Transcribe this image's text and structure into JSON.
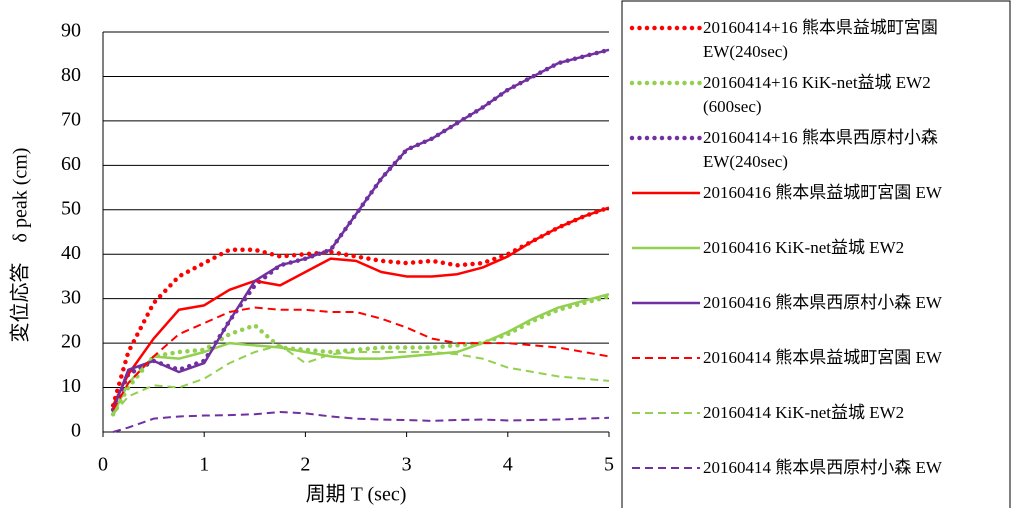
{
  "chart_data": {
    "type": "line",
    "y_label": "変位応答　δ peak (cm)",
    "x_label": "周期 T (sec)",
    "x": [
      0.1,
      0.25,
      0.5,
      0.75,
      1,
      1.25,
      1.5,
      1.75,
      2,
      2.25,
      2.5,
      2.75,
      3,
      3.25,
      3.5,
      3.75,
      4,
      4.25,
      4.5,
      4.75,
      5
    ],
    "xlim": [
      0,
      5
    ],
    "xticks": [
      0,
      1,
      2,
      3,
      4,
      5
    ],
    "ylim": [
      0,
      90
    ],
    "yticks": [
      0,
      10,
      20,
      30,
      40,
      50,
      60,
      70,
      80,
      90
    ],
    "grid": true,
    "legend": "right",
    "series": [
      {
        "name": "20160414+16 熊本県益城町宮園 EW(240sec)",
        "color": "#ff0000",
        "style": "dotted",
        "values": [
          6,
          18,
          29,
          35,
          38,
          41,
          41,
          39.5,
          40,
          40.5,
          39.5,
          38.5,
          38,
          38.5,
          37.5,
          38,
          40,
          43,
          46,
          48.5,
          50.5
        ]
      },
      {
        "name": "20160414+16 KiK-net益城 EW2 (600sec)",
        "color": "#92d050",
        "style": "dotted",
        "values": [
          4,
          10,
          17,
          18,
          18.5,
          22,
          24,
          19,
          18.5,
          18,
          18.5,
          19,
          19,
          19,
          19.5,
          20,
          22,
          25,
          27.5,
          29,
          30.5
        ]
      },
      {
        "name": "20160414+16 熊本県西原村小森 EW(240sec)",
        "color": "#7030a0",
        "style": "dotted",
        "values": [
          5,
          13,
          16,
          14,
          16,
          25,
          33,
          37.5,
          39,
          41,
          49,
          57,
          63.5,
          66,
          69.5,
          73,
          77,
          80,
          83,
          84.5,
          86
        ]
      },
      {
        "name": "20160416 熊本県益城町宮園 EW",
        "color": "#ff0000",
        "style": "solid",
        "values": [
          6,
          13,
          21,
          27.5,
          28.5,
          32,
          34,
          33,
          36,
          39,
          38.5,
          36,
          35,
          35,
          35.5,
          37,
          39.5,
          43,
          46,
          48.5,
          50.5
        ]
      },
      {
        "name": "20160416 KiK-net益城 EW2",
        "color": "#92d050",
        "style": "solid",
        "values": [
          4,
          11,
          17,
          16.5,
          18,
          20,
          19.5,
          19,
          18,
          17,
          16.5,
          16.5,
          17,
          17.5,
          18,
          20,
          22.5,
          25.5,
          28,
          29.5,
          31
        ]
      },
      {
        "name": "20160416 熊本県西原村小森 EW",
        "color": "#7030a0",
        "style": "solid",
        "values": [
          5,
          14,
          16,
          13.5,
          15.5,
          25,
          34,
          37.5,
          39,
          41,
          49,
          57,
          63.5,
          66,
          69.5,
          73,
          77,
          80,
          83,
          84.5,
          86
        ]
      },
      {
        "name": "20160414 熊本県益城町宮園 EW",
        "color": "#ff0000",
        "style": "dashed",
        "values": [
          5,
          11,
          17,
          22,
          24.5,
          27,
          28,
          27.5,
          27.5,
          27,
          27,
          25.5,
          23.5,
          21,
          20,
          20,
          20,
          19.5,
          19,
          18,
          17
        ]
      },
      {
        "name": "20160414 KiK-net益城 EW2",
        "color": "#92d050",
        "style": "dashed",
        "values": [
          4,
          8,
          10.5,
          10,
          12,
          15.5,
          18,
          19.5,
          15.5,
          17.5,
          18,
          18,
          18,
          18,
          17.5,
          16.5,
          14.5,
          13.5,
          12.5,
          12,
          11.5
        ]
      },
      {
        "name": "20160414 熊本県西原村小森 EW",
        "color": "#7030a0",
        "style": "dashed",
        "values": [
          0,
          1,
          3,
          3.5,
          3.7,
          3.8,
          4,
          4.5,
          4.2,
          3.5,
          3,
          2.8,
          2.7,
          2.5,
          2.7,
          2.8,
          2.6,
          2.7,
          2.8,
          3,
          3.2
        ]
      }
    ]
  }
}
